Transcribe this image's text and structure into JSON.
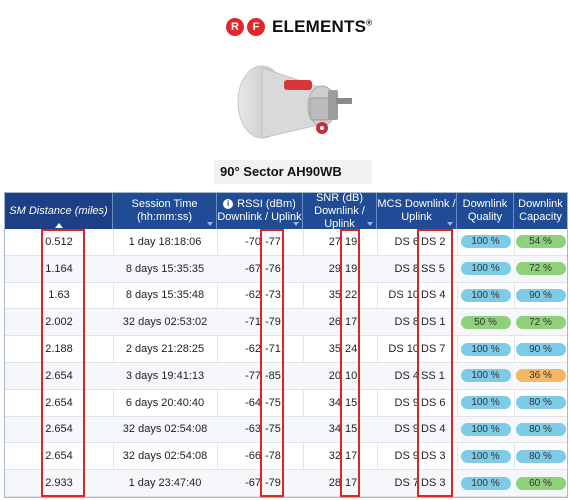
{
  "brand": {
    "rf_r": "R",
    "rf_f": "F",
    "name": "ELEMENTS",
    "reg": "®"
  },
  "product": {
    "caption": "90° Sector AH90WB"
  },
  "colors": {
    "header_bg": "#1f4c95",
    "highlight": "#e02424",
    "quality_blue": "#7ecbe8",
    "capacity_green": "#8fd17a",
    "capacity_orange": "#f3b766"
  },
  "table": {
    "columns": {
      "distance": "SM Distance (miles)",
      "session_1": "Session Time",
      "session_2": "(hh:mm:ss)",
      "rssi_1": "RSSI (dBm)",
      "rssi_2": "Downlink / Uplink",
      "snr_1": "SNR (dB)",
      "snr_2": "Downlink / Uplink",
      "mcs_1": "MCS Downlink /",
      "mcs_2": "Uplink",
      "quality_1": "Downlink",
      "quality_2": "Quality",
      "capacity_1": "Downlink",
      "capacity_2": "Capacity"
    },
    "rows": [
      {
        "dist": "0.512",
        "time": "1 day 18:18:06",
        "rssi_dl": "-70",
        "rssi_ul": "-77",
        "snr_dl": "27",
        "snr_ul": "19",
        "mcs_dl": "DS 6",
        "mcs_ul": "DS 2",
        "quality": "100 %",
        "quality_color": "#7ecbe8",
        "capacity": "54 %",
        "capacity_color": "#8fd17a"
      },
      {
        "dist": "1.164",
        "time": "8 days 15:35:35",
        "rssi_dl": "-67",
        "rssi_ul": "-76",
        "snr_dl": "29",
        "snr_ul": "19",
        "mcs_dl": "DS 8",
        "mcs_ul": "SS 5",
        "quality": "100 %",
        "quality_color": "#7ecbe8",
        "capacity": "72 %",
        "capacity_color": "#8fd17a"
      },
      {
        "dist": "1.63",
        "time": "8 days 15:35:48",
        "rssi_dl": "-62",
        "rssi_ul": "-73",
        "snr_dl": "35",
        "snr_ul": "22",
        "mcs_dl": "DS 10",
        "mcs_ul": "DS 4",
        "quality": "100 %",
        "quality_color": "#7ecbe8",
        "capacity": "90 %",
        "capacity_color": "#7ecbe8"
      },
      {
        "dist": "2.002",
        "time": "32 days 02:53:02",
        "rssi_dl": "-71",
        "rssi_ul": "-79",
        "snr_dl": "26",
        "snr_ul": "17",
        "mcs_dl": "DS 8",
        "mcs_ul": "DS 1",
        "quality": "50 %",
        "quality_color": "#8fd17a",
        "capacity": "72 %",
        "capacity_color": "#8fd17a"
      },
      {
        "dist": "2.188",
        "time": "2 days 21:28:25",
        "rssi_dl": "-62",
        "rssi_ul": "-71",
        "snr_dl": "35",
        "snr_ul": "24",
        "mcs_dl": "DS 10",
        "mcs_ul": "DS 7",
        "quality": "100 %",
        "quality_color": "#7ecbe8",
        "capacity": "90 %",
        "capacity_color": "#7ecbe8"
      },
      {
        "dist": "2.654",
        "time": "3 days 19:41:13",
        "rssi_dl": "-77",
        "rssi_ul": "-85",
        "snr_dl": "20",
        "snr_ul": "10",
        "mcs_dl": "DS 4",
        "mcs_ul": "SS 1",
        "quality": "100 %",
        "quality_color": "#7ecbe8",
        "capacity": "36 %",
        "capacity_color": "#f3b766"
      },
      {
        "dist": "2.654",
        "time": "6 days 20:40:40",
        "rssi_dl": "-64",
        "rssi_ul": "-75",
        "snr_dl": "34",
        "snr_ul": "15",
        "mcs_dl": "DS 9",
        "mcs_ul": "DS 6",
        "quality": "100 %",
        "quality_color": "#7ecbe8",
        "capacity": "80 %",
        "capacity_color": "#7ecbe8"
      },
      {
        "dist": "2.654",
        "time": "32 days 02:54:08",
        "rssi_dl": "-63",
        "rssi_ul": "-75",
        "snr_dl": "34",
        "snr_ul": "15",
        "mcs_dl": "DS 9",
        "mcs_ul": "DS 4",
        "quality": "100 %",
        "quality_color": "#7ecbe8",
        "capacity": "80 %",
        "capacity_color": "#7ecbe8"
      },
      {
        "dist": "2.654",
        "time": "32 days 02:54:08",
        "rssi_dl": "-66",
        "rssi_ul": "-78",
        "snr_dl": "32",
        "snr_ul": "17",
        "mcs_dl": "DS 9",
        "mcs_ul": "DS 3",
        "quality": "100 %",
        "quality_color": "#7ecbe8",
        "capacity": "80 %",
        "capacity_color": "#7ecbe8"
      },
      {
        "dist": "2.933",
        "time": "1 day 23:47:40",
        "rssi_dl": "-67",
        "rssi_ul": "-79",
        "snr_dl": "28",
        "snr_ul": "17",
        "mcs_dl": "DS 7",
        "mcs_ul": "DS 3",
        "quality": "100 %",
        "quality_color": "#7ecbe8",
        "capacity": "60 %",
        "capacity_color": "#8fd17a"
      }
    ]
  }
}
